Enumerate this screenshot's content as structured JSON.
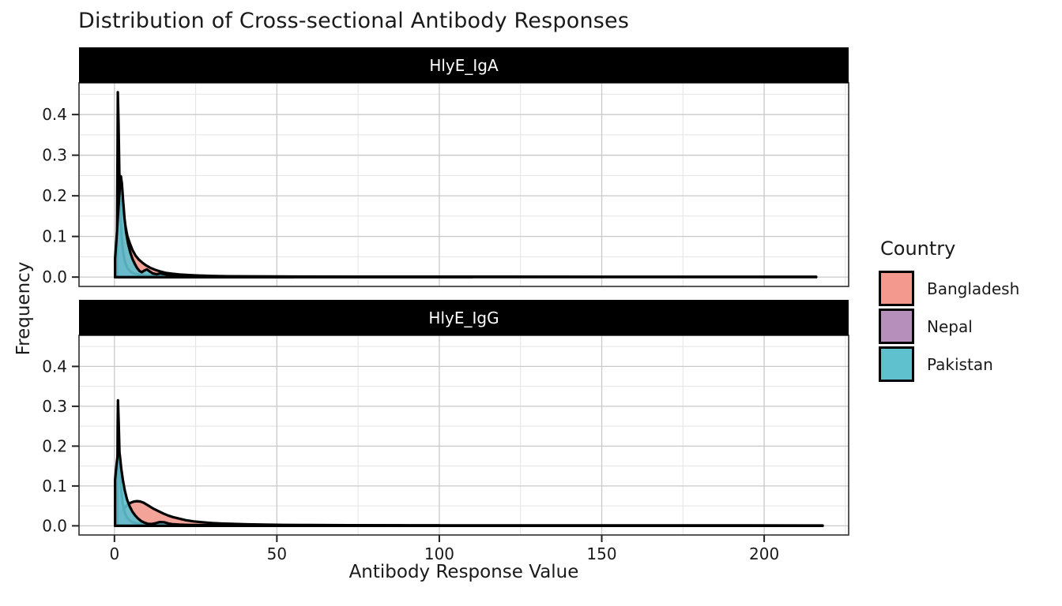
{
  "title": "Distribution of Cross-sectional Antibody Responses",
  "chart_data": {
    "type": "area",
    "title": "Distribution of Cross-sectional Antibody Responses",
    "xlabel": "Antibody Response Value",
    "ylabel": "Frequency",
    "xlim": [
      -10.9,
      226
    ],
    "ylim": [
      -0.023,
      0.478
    ],
    "grid": "on",
    "x_major_ticks": [
      0,
      50,
      100,
      150,
      200
    ],
    "x_major_labels": [
      "0",
      "50",
      "100",
      "150",
      "200"
    ],
    "x_minor_ticks": [
      25,
      75,
      125,
      175,
      225
    ],
    "y_major_ticks": [
      0.0,
      0.1,
      0.2,
      0.3,
      0.4
    ],
    "y_major_labels": [
      "0.0",
      "0.1",
      "0.2",
      "0.3",
      "0.4"
    ],
    "y_minor_ticks": [
      0.05,
      0.15,
      0.25,
      0.35,
      0.45
    ],
    "legend": {
      "title": "Country",
      "position": "right",
      "entries": [
        {
          "label": "Bangladesh",
          "color": "#F3998E"
        },
        {
          "label": "Nepal",
          "color": "#B78FBB"
        },
        {
          "label": "Pakistan",
          "color": "#5FC0CE"
        }
      ]
    },
    "colors": {
      "strip_bg": "#000000",
      "strip_text": "#ffffff",
      "panel_bg": "#ffffff",
      "grid_major": "#c9c9c9",
      "grid_minor": "#e4e4e4",
      "panel_border": "#2e2e2e",
      "curve_stroke": "#000000"
    },
    "facets": [
      {
        "label": "HlyE_IgA",
        "series": [
          {
            "name": "Bangladesh",
            "color": "#F3998E",
            "points": [
              [
                0.2,
                0.02
              ],
              [
                0.7,
                0.09
              ],
              [
                1.2,
                0.155
              ],
              [
                1.7,
                0.195
              ],
              [
                2.2,
                0.185
              ],
              [
                2.8,
                0.155
              ],
              [
                3.4,
                0.125
              ],
              [
                4.0,
                0.1
              ],
              [
                4.8,
                0.082
              ],
              [
                5.6,
                0.066
              ],
              [
                6.5,
                0.053
              ],
              [
                7.5,
                0.043
              ],
              [
                8.5,
                0.036
              ],
              [
                9.5,
                0.03
              ],
              [
                11,
                0.023
              ],
              [
                12.5,
                0.018
              ],
              [
                14,
                0.014
              ],
              [
                16,
                0.01
              ],
              [
                18,
                0.008
              ],
              [
                20,
                0.0065
              ],
              [
                23,
                0.005
              ],
              [
                26,
                0.0038
              ],
              [
                30,
                0.0028
              ],
              [
                35,
                0.002
              ],
              [
                42,
                0.0015
              ],
              [
                55,
                0.0012
              ],
              [
                75,
                0.001
              ],
              [
                110,
                0.001
              ],
              [
                150,
                0.0009
              ],
              [
                185,
                0.0009
              ],
              [
                216,
                0.0008
              ]
            ]
          },
          {
            "name": "Nepal",
            "color": "#B78FBB",
            "points": [
              [
                0.8,
                0.1
              ],
              [
                0.95,
                0.3
              ],
              [
                1.05,
                0.455
              ],
              [
                1.25,
                0.38
              ],
              [
                1.5,
                0.26
              ],
              [
                1.8,
                0.165
              ],
              [
                2.2,
                0.1
              ],
              [
                2.7,
                0.06
              ],
              [
                3.3,
                0.036
              ],
              [
                4,
                0.022
              ],
              [
                5,
                0.013
              ],
              [
                6,
                0.009
              ],
              [
                7.5,
                0.006
              ],
              [
                9,
                0.0045
              ],
              [
                11,
                0.0035
              ],
              [
                14,
                0.0027
              ],
              [
                18,
                0.002
              ],
              [
                25,
                0.0015
              ],
              [
                40,
                0.0012
              ],
              [
                70,
                0.001
              ],
              [
                110,
                0.0009
              ]
            ]
          },
          {
            "name": "Pakistan",
            "color": "#5FC0CE",
            "points": [
              [
                0.2,
                0.045
              ],
              [
                0.6,
                0.09
              ],
              [
                1.0,
                0.14
              ],
              [
                1.4,
                0.19
              ],
              [
                1.8,
                0.235
              ],
              [
                2.0,
                0.248
              ],
              [
                2.3,
                0.23
              ],
              [
                2.7,
                0.185
              ],
              [
                3.1,
                0.145
              ],
              [
                3.6,
                0.11
              ],
              [
                4.2,
                0.082
              ],
              [
                4.9,
                0.06
              ],
              [
                5.6,
                0.044
              ],
              [
                6.3,
                0.032
              ],
              [
                7.0,
                0.022
              ],
              [
                7.7,
                0.015
              ],
              [
                8.4,
                0.012
              ],
              [
                9.2,
                0.016
              ],
              [
                10,
                0.019
              ],
              [
                10.8,
                0.014
              ],
              [
                11.8,
                0.009
              ],
              [
                13,
                0.007
              ],
              [
                14.2,
                0.009
              ],
              [
                15.5,
                0.007
              ],
              [
                17,
                0.005
              ],
              [
                19,
                0.0038
              ],
              [
                21.5,
                0.003
              ],
              [
                24,
                0.004
              ],
              [
                26.5,
                0.003
              ],
              [
                30,
                0.002
              ],
              [
                35,
                0.0015
              ],
              [
                42,
                0.0012
              ],
              [
                55,
                0.001
              ]
            ]
          }
        ]
      },
      {
        "label": "HlyE_IgG",
        "series": [
          {
            "name": "Bangladesh",
            "color": "#F3998E",
            "points": [
              [
                0.2,
                0.01
              ],
              [
                1.0,
                0.02
              ],
              [
                2.0,
                0.032
              ],
              [
                3.0,
                0.044
              ],
              [
                4.0,
                0.053
              ],
              [
                5.0,
                0.058
              ],
              [
                6.0,
                0.061
              ],
              [
                7.0,
                0.062
              ],
              [
                8.0,
                0.061
              ],
              [
                9.0,
                0.058
              ],
              [
                10,
                0.053
              ],
              [
                11,
                0.048
              ],
              [
                12,
                0.043
              ],
              [
                13.5,
                0.037
              ],
              [
                15,
                0.031
              ],
              [
                16.5,
                0.026
              ],
              [
                18,
                0.022
              ],
              [
                20,
                0.018
              ],
              [
                22,
                0.014
              ],
              [
                24.5,
                0.011
              ],
              [
                27,
                0.009
              ],
              [
                30,
                0.007
              ],
              [
                33,
                0.0058
              ],
              [
                37,
                0.0047
              ],
              [
                41,
                0.0038
              ],
              [
                46,
                0.003
              ],
              [
                52,
                0.0024
              ],
              [
                60,
                0.0019
              ],
              [
                72,
                0.0015
              ],
              [
                90,
                0.0012
              ],
              [
                115,
                0.001
              ],
              [
                145,
                0.001
              ],
              [
                175,
                0.0011
              ],
              [
                195,
                0.0009
              ],
              [
                218,
                0.0008
              ]
            ]
          },
          {
            "name": "Nepal",
            "color": "#B78FBB",
            "points": [
              [
                0.9,
                0.11
              ],
              [
                1.0,
                0.25
              ],
              [
                1.1,
                0.315
              ],
              [
                1.3,
                0.26
              ],
              [
                1.6,
                0.17
              ],
              [
                2.0,
                0.1
              ],
              [
                2.5,
                0.058
              ],
              [
                3.1,
                0.035
              ],
              [
                3.8,
                0.022
              ],
              [
                4.6,
                0.014
              ],
              [
                5.6,
                0.009
              ],
              [
                7,
                0.006
              ],
              [
                9,
                0.004
              ],
              [
                12,
                0.003
              ],
              [
                16,
                0.0022
              ],
              [
                22,
                0.0017
              ],
              [
                35,
                0.0013
              ],
              [
                60,
                0.001
              ],
              [
                100,
                0.0009
              ]
            ]
          },
          {
            "name": "Pakistan",
            "color": "#5FC0CE",
            "points": [
              [
                0.2,
                0.115
              ],
              [
                0.6,
                0.15
              ],
              [
                1.0,
                0.178
              ],
              [
                1.35,
                0.192
              ],
              [
                1.7,
                0.175
              ],
              [
                2.1,
                0.145
              ],
              [
                2.6,
                0.115
              ],
              [
                3.2,
                0.088
              ],
              [
                3.9,
                0.066
              ],
              [
                4.7,
                0.049
              ],
              [
                5.5,
                0.036
              ],
              [
                6.4,
                0.026
              ],
              [
                7.3,
                0.018
              ],
              [
                8.2,
                0.012
              ],
              [
                9.2,
                0.008
              ],
              [
                10.3,
                0.005
              ],
              [
                11.5,
                0.0045
              ],
              [
                12.8,
                0.007
              ],
              [
                14,
                0.0095
              ],
              [
                15.3,
                0.009
              ],
              [
                16.6,
                0.006
              ],
              [
                18,
                0.004
              ],
              [
                20,
                0.003
              ],
              [
                23,
                0.0022
              ],
              [
                27,
                0.0017
              ],
              [
                33,
                0.0013
              ],
              [
                42,
                0.001
              ],
              [
                52,
                0.0009
              ]
            ]
          }
        ]
      }
    ]
  }
}
